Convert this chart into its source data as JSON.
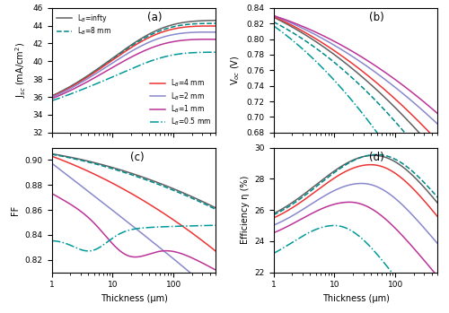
{
  "title_a": "(a)",
  "title_b": "(b)",
  "title_c": "(c)",
  "title_d": "(d)",
  "xlabel": "Thickness (μm)",
  "ylabel_a": "J$_{sc}$ (mA/cm$^2$)",
  "ylabel_b": "V$_{oc}$ (V)",
  "ylabel_c": "FF",
  "ylabel_d": "Efficiency η (%)",
  "colors": {
    "infty": "#606060",
    "L8": "#008888",
    "L4": "#ee3333",
    "L2": "#8888cc",
    "L1": "#bb3399",
    "L05": "#009999"
  },
  "legend_labels": {
    "infty": "L$_B$=infty",
    "L8": "L$_B$=8 mm",
    "L4": "L$_B$=4 mm",
    "L2": "L$_B$=2 mm",
    "L1": "L$_B$=1 mm",
    "L05": "L$_B$=0.5 mm"
  }
}
